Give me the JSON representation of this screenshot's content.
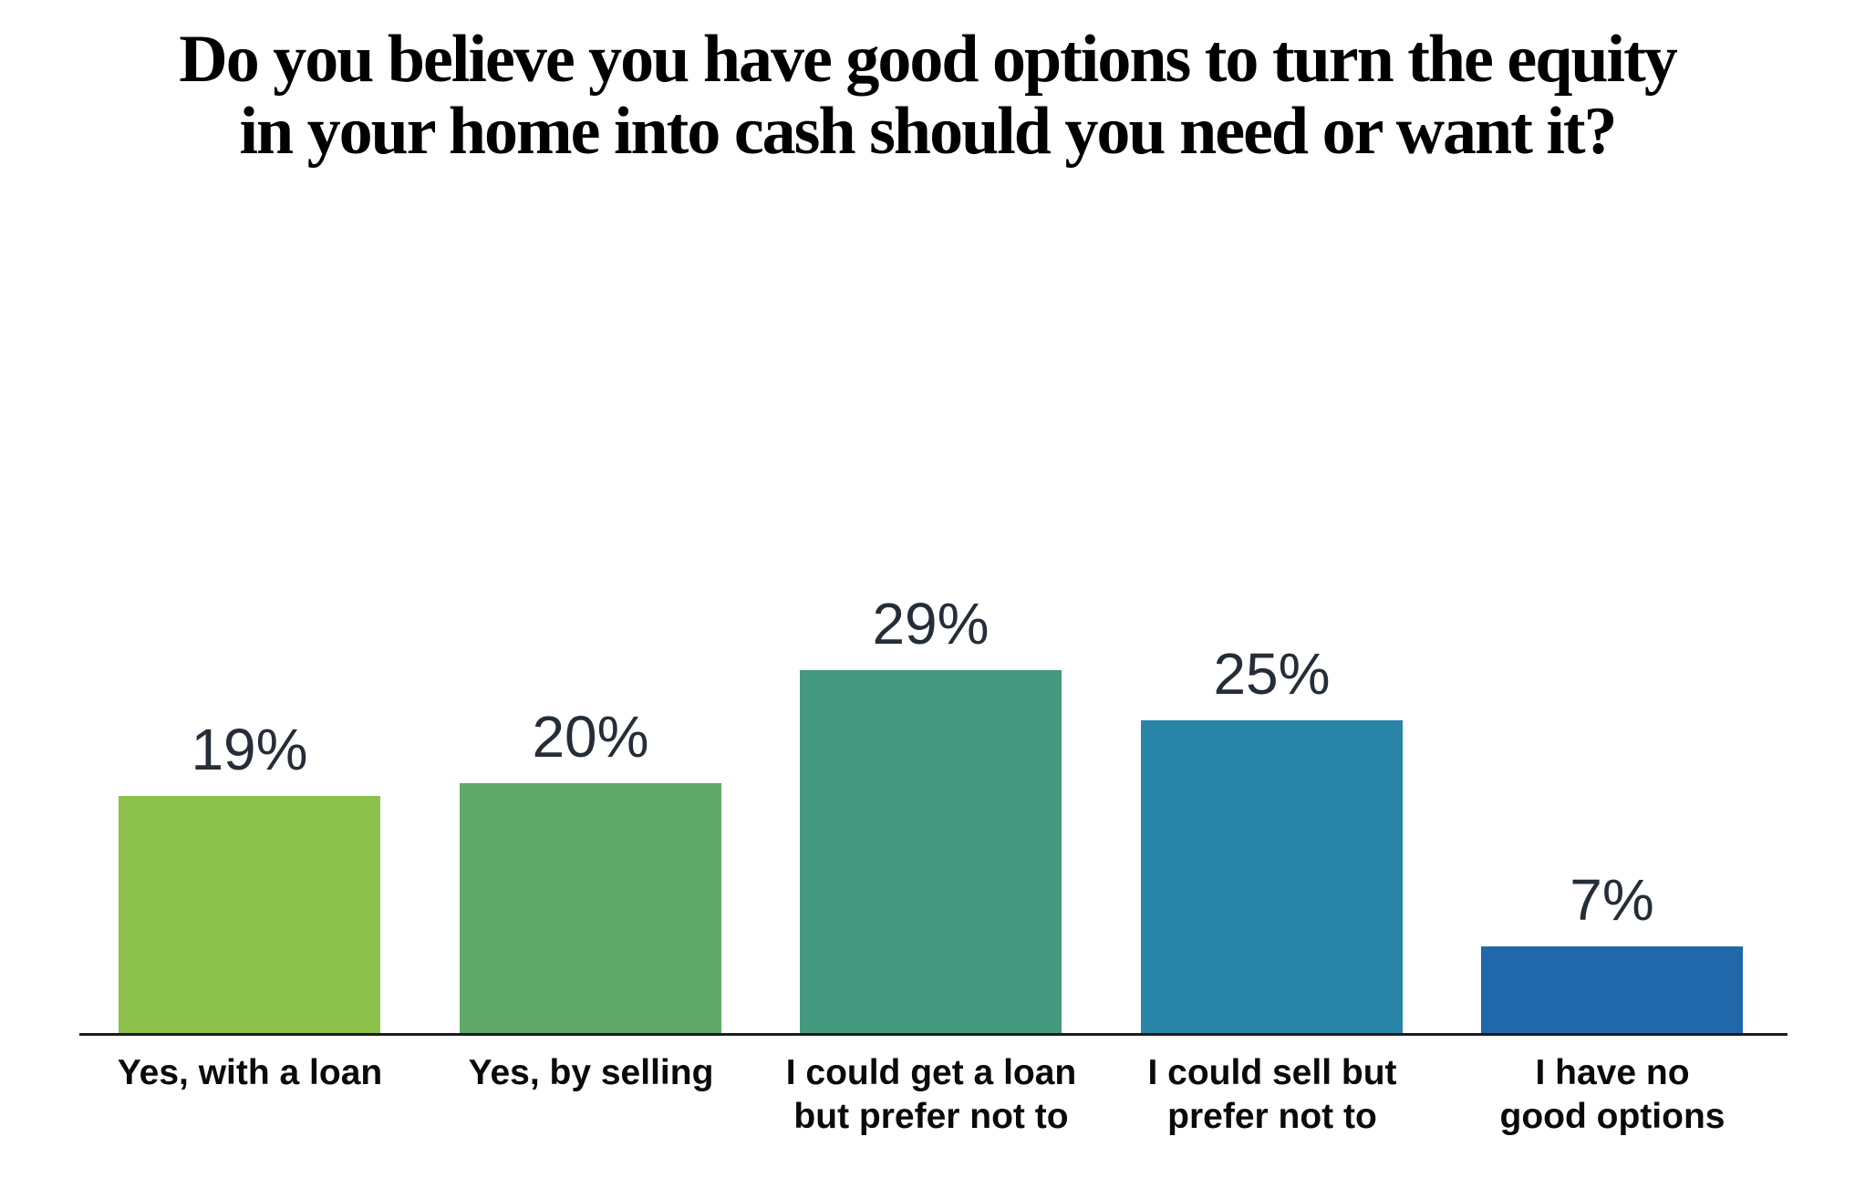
{
  "chart_data": {
    "type": "bar",
    "title": "Do you believe you have good options to turn the equity\nin your home into cash should you need or want it?",
    "categories": [
      "Yes, with a loan",
      "Yes, by selling",
      "I could get a loan\nbut prefer not to",
      "I could sell but\nprefer not to",
      "I have no\ngood options"
    ],
    "values": [
      19,
      20,
      29,
      25,
      7
    ],
    "value_labels": [
      "19%",
      "20%",
      "29%",
      "25%",
      "7%"
    ],
    "colors": [
      "#8CC24B",
      "#5FA968",
      "#45997F",
      "#2885A8",
      "#2068A9"
    ],
    "xlabel": "",
    "ylabel": "",
    "ylim": [
      0,
      35
    ],
    "grid": false,
    "legend_position": "none",
    "axis_line_color": "#1C1C1C",
    "value_label_color": "#252D38",
    "category_label_color": "#0A0A0A",
    "title_color": "#000000",
    "background_color": "#FFFFFF"
  }
}
